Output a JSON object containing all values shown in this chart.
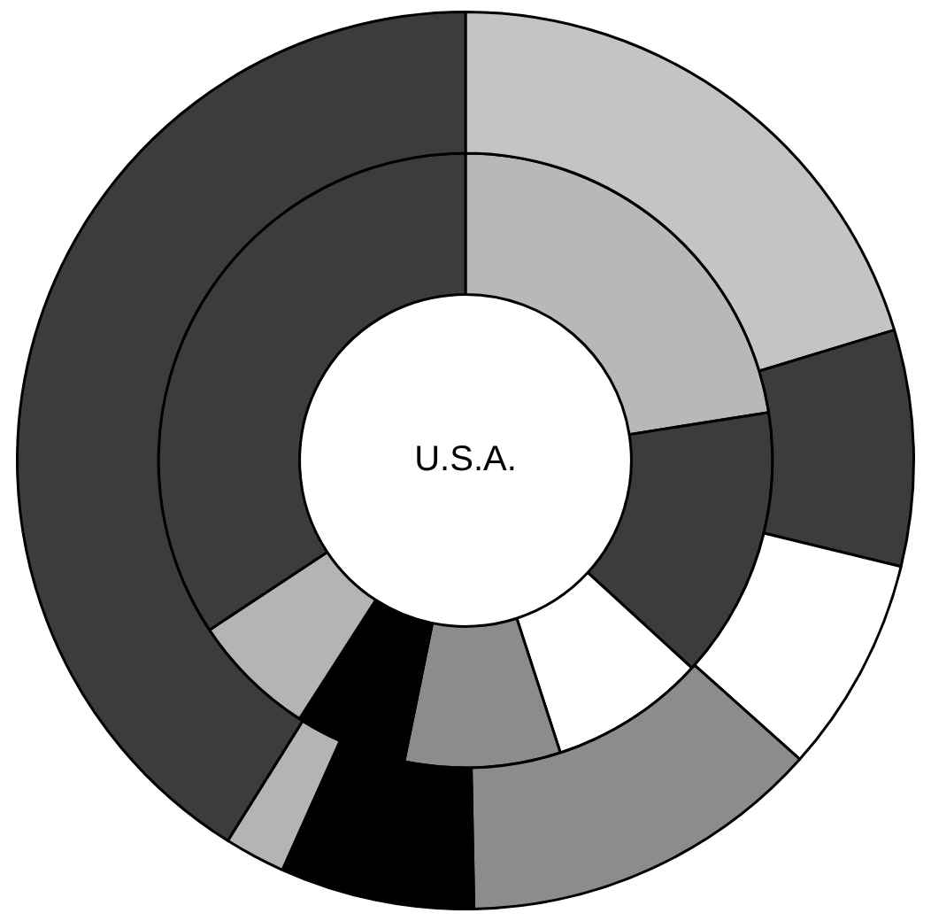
{
  "chart_data": {
    "type": "donut",
    "title": "U.S.A.",
    "categories": [
      null,
      null,
      null,
      null,
      null,
      null,
      null
    ],
    "series": [
      {
        "values": [
          20.3,
          8.5,
          7.8,
          13.1,
          7.0,
          2.2,
          41.1
        ],
        "colors": [
          "#c4c4c4",
          "#3c3c3c",
          "#ffffff",
          "#8c8c8c",
          "#000000",
          "#b4b4b4",
          "#3c3c3c"
        ]
      },
      {
        "values": [
          22.5,
          14.3,
          8.2,
          8.2,
          5.9,
          6.6,
          34.3
        ],
        "colors": [
          "#b8b8b8",
          "#3c3c3c",
          "#ffffff",
          "#8c8c8c",
          "#000000",
          "#b4b4b4",
          "#3c3c3c"
        ]
      }
    ]
  }
}
